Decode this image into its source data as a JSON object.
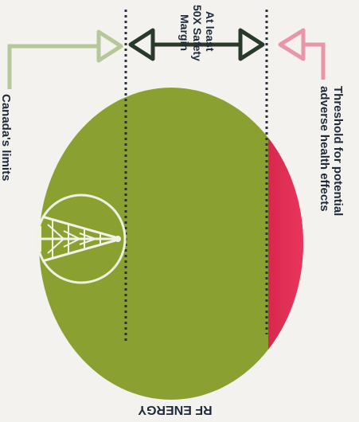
{
  "labels": {
    "canada_limits": "Canada's limits",
    "safety_margin_line1": "At least",
    "safety_margin_line2": "50X Safety",
    "safety_margin_line3": "Margin",
    "threshold_line1": "Threshold for potential",
    "threshold_line2": "adverse health effects",
    "rf_energy": "RF ENERGY"
  },
  "colors": {
    "background": "#f4f2ee",
    "green_field": "#8aa030",
    "red_zone": "#e0305a",
    "canada_arrow": "#b6c79a",
    "margin_arrow": "#2a3a2a",
    "threshold_arrow": "#e896a8",
    "text": "#1e2a3a",
    "tower": "#f2f2e8"
  },
  "icons": {
    "tower": "cell-tower-icon"
  }
}
